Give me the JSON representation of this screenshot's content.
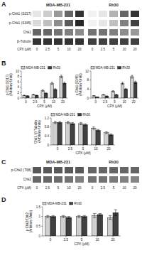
{
  "chart_data": [
    {
      "type": "blot",
      "annotations": [
        "A"
      ],
      "rows": [
        "p-Chk1 (S317)",
        "p-Chk1 (S345)",
        "Chk1",
        "β-Tubulin"
      ],
      "xlabel": "CPX (μM)",
      "categories": [
        "0",
        "2.5",
        "5",
        "10",
        "20"
      ],
      "series": [
        {
          "name": "MDA-MB-231",
          "cells": [
            [
              0.1,
              0.2,
              0.4,
              0.6,
              0.8
            ],
            [
              0.15,
              0.25,
              0.45,
              0.65,
              0.85
            ],
            [
              0.6,
              0.6,
              0.55,
              0.5,
              0.45
            ],
            [
              0.8,
              0.8,
              0.8,
              0.8,
              0.8
            ]
          ]
        },
        {
          "name": "Rh30",
          "cells": [
            [
              0.05,
              0.1,
              0.3,
              0.6,
              0.8
            ],
            [
              0.05,
              0.1,
              0.25,
              0.5,
              0.75
            ],
            [
              0.55,
              0.55,
              0.5,
              0.45,
              0.4
            ],
            [
              0.75,
              0.75,
              0.75,
              0.75,
              0.75
            ]
          ]
        }
      ]
    },
    {
      "type": "bar",
      "annotations": [
        "B"
      ],
      "ylabel": "p-Chk1 (S317) (Arbitrary Units)",
      "xlabel": "CPX (μM)",
      "categories": [
        "0",
        "2.5",
        "5",
        "10",
        "20"
      ],
      "series": [
        {
          "name": "MDA-MB-231",
          "color": "#d0d0d0",
          "values": [
            1.0,
            1.3,
            2.8,
            5.5,
            8.0
          ],
          "errors": [
            0.1,
            0.15,
            0.3,
            0.4,
            0.5
          ]
        },
        {
          "name": "Rh30",
          "color": "#404040",
          "values": [
            0.8,
            1.0,
            1.8,
            3.2,
            5.5
          ],
          "errors": [
            0.1,
            0.1,
            0.2,
            0.3,
            0.4
          ]
        }
      ],
      "ylim": [
        0,
        10
      ],
      "yticks": [
        0,
        2,
        4,
        6,
        8,
        10
      ],
      "legend": "top"
    },
    {
      "type": "bar",
      "ylabel": "p-Chk1 (S345) (Arbitrary Units)",
      "xlabel": "CPX (μM)",
      "categories": [
        "0",
        "2.5",
        "5",
        "10",
        "20"
      ],
      "series": [
        {
          "name": "MDA-MB-231",
          "color": "#d0d0d0",
          "values": [
            1.0,
            1.5,
            3.0,
            6.5,
            9.5
          ],
          "errors": [
            0.1,
            0.15,
            0.3,
            0.5,
            0.6
          ]
        },
        {
          "name": "Rh30",
          "color": "#404040",
          "values": [
            0.5,
            0.9,
            1.5,
            4.0,
            7.0
          ],
          "errors": [
            0.05,
            0.1,
            0.2,
            0.3,
            0.5
          ]
        }
      ],
      "ylim": [
        0,
        12
      ],
      "yticks": [
        0,
        4,
        8,
        12
      ],
      "legend": "top"
    },
    {
      "type": "bar",
      "ylabel": "Chk1 / β-Tubulin (Arbitrary Units)",
      "xlabel": "CPX (μM)",
      "categories": [
        "0",
        "2.5",
        "5",
        "10",
        "20"
      ],
      "series": [
        {
          "name": "MDA-MB-231",
          "color": "#d0d0d0",
          "values": [
            1.0,
            1.0,
            0.95,
            0.75,
            0.55
          ],
          "errors": [
            0.05,
            0.05,
            0.05,
            0.05,
            0.04
          ]
        },
        {
          "name": "Rh30",
          "color": "#404040",
          "values": [
            1.0,
            0.95,
            0.9,
            0.65,
            0.45
          ],
          "errors": [
            0.05,
            0.05,
            0.04,
            0.04,
            0.04
          ]
        }
      ],
      "ylim": [
        0,
        1.2
      ],
      "yticks": [
        0,
        0.4,
        0.8,
        1.2
      ],
      "legend": "top"
    },
    {
      "type": "blot",
      "annotations": [
        "C"
      ],
      "rows": [
        "p-Chk2 (T68)",
        "Chk2"
      ],
      "xlabel": "CPX (μM)",
      "categories": [
        "0",
        "2.5",
        "5",
        "10",
        "20"
      ],
      "series": [
        {
          "name": "MDA-MB-231",
          "cells": [
            [
              0.65,
              0.65,
              0.65,
              0.65,
              0.65
            ],
            [
              0.6,
              0.6,
              0.58,
              0.55,
              0.5
            ]
          ]
        },
        {
          "name": "Rh30",
          "cells": [
            [
              0.6,
              0.6,
              0.6,
              0.6,
              0.6
            ],
            [
              0.55,
              0.55,
              0.52,
              0.5,
              0.48
            ]
          ]
        }
      ]
    },
    {
      "type": "bar",
      "annotations": [
        "D"
      ],
      "ylabel": "p-Chk2/Chk2 (Arbitrary Units)",
      "xlabel": "CPX (μM)",
      "categories": [
        "0",
        "2.5",
        "5",
        "10",
        "20"
      ],
      "series": [
        {
          "name": "MDA-MB-231",
          "color": "#d0d0d0",
          "values": [
            1.0,
            1.0,
            1.0,
            1.05,
            0.95
          ],
          "errors": [
            0.05,
            0.05,
            0.05,
            0.1,
            0.1
          ]
        },
        {
          "name": "Rh30",
          "color": "#404040",
          "values": [
            1.0,
            0.95,
            1.0,
            1.1,
            1.2
          ],
          "errors": [
            0.05,
            0.05,
            0.05,
            0.05,
            0.15
          ]
        }
      ],
      "ylim": [
        0,
        1.5
      ],
      "yticks": [
        0,
        0.5,
        1,
        1.5
      ],
      "legend": "top"
    }
  ]
}
